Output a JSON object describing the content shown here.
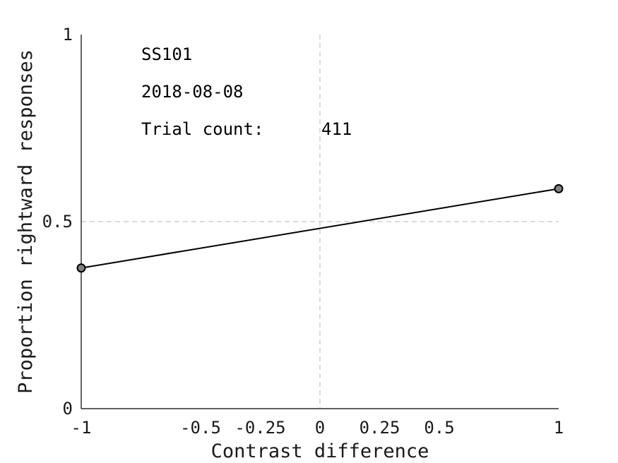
{
  "chart_data": {
    "type": "line",
    "xlabel": "Contrast difference",
    "ylabel": "Proportion rightward responses",
    "xlim": [
      -1,
      1
    ],
    "ylim": [
      0,
      1
    ],
    "x_ticks": [
      -1,
      -0.5,
      -0.25,
      0,
      0.25,
      0.5,
      1
    ],
    "x_tick_labels": [
      "-1",
      "-0.5",
      "-0.25",
      "0",
      "0.25",
      "0.5",
      "1"
    ],
    "y_ticks": [
      0,
      0.5,
      1
    ],
    "y_tick_labels": [
      "0",
      "0.5",
      "1"
    ],
    "reference_lines": {
      "x": 0,
      "y": 0.5,
      "style": "dashed",
      "color": "#c8c8c8"
    },
    "series": [
      {
        "x": [
          -1,
          1
        ],
        "y": [
          0.376,
          0.588
        ],
        "line_color": "#000000",
        "marker_fill": "#808080",
        "marker_edge": "#000000"
      }
    ],
    "annotations": {
      "subject": "SS101",
      "date": "2018-08-08",
      "trial_count_label": "Trial count:",
      "trial_count": "411"
    }
  }
}
